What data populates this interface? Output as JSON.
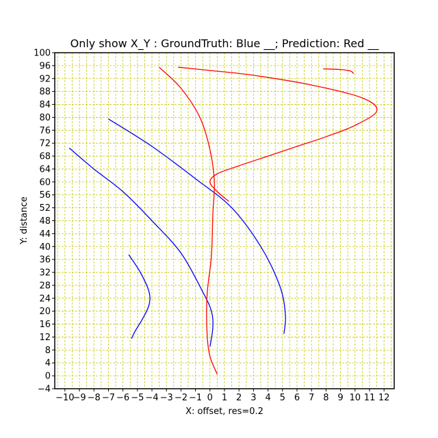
{
  "chart_data": {
    "type": "line",
    "title": "Only show X_Y : GroundTruth: Blue __;   Prediction: Red __",
    "xlabel": "X: offset, res=0.2",
    "ylabel": "Y: distance",
    "xlim": [
      -10.7,
      12.7
    ],
    "ylim": [
      -4,
      100
    ],
    "xticks": [
      -10,
      -9,
      -8,
      -7,
      -6,
      -5,
      -4,
      -3,
      -2,
      -1,
      0,
      1,
      2,
      3,
      4,
      5,
      6,
      7,
      8,
      9,
      10,
      11,
      12
    ],
    "yticks": [
      -4,
      0,
      4,
      8,
      12,
      16,
      20,
      24,
      28,
      32,
      36,
      40,
      44,
      48,
      52,
      56,
      60,
      64,
      68,
      72,
      76,
      80,
      84,
      88,
      92,
      96,
      100
    ],
    "xtick_labels": [
      "−10",
      "−9",
      "−8",
      "−7",
      "−6",
      "−5",
      "−4",
      "−3",
      "−2",
      "−1",
      "0",
      "1",
      "2",
      "3",
      "4",
      "5",
      "6",
      "7",
      "8",
      "9",
      "10",
      "11",
      "12"
    ],
    "ytick_labels": [
      "−4",
      "0",
      "4",
      "8",
      "12",
      "16",
      "20",
      "24",
      "28",
      "32",
      "36",
      "40",
      "44",
      "48",
      "52",
      "56",
      "60",
      "64",
      "68",
      "72",
      "76",
      "80",
      "84",
      "88",
      "92",
      "96",
      "100"
    ],
    "grid": true,
    "series": [
      {
        "color": "#0000ff",
        "points": [
          [
            -5.6,
            37.5
          ],
          [
            -4.8,
            32
          ],
          [
            -4.2,
            26
          ],
          [
            -4.2,
            22
          ],
          [
            -4.6,
            18
          ],
          [
            -5.2,
            13.5
          ],
          [
            -5.4,
            11.5
          ]
        ]
      },
      {
        "color": "#0000ff",
        "points": [
          [
            -9.7,
            70.5
          ],
          [
            -8,
            64
          ],
          [
            -6,
            57
          ],
          [
            -4,
            48
          ],
          [
            -2,
            38
          ],
          [
            -0.5,
            26
          ],
          [
            0.1,
            20
          ],
          [
            0.2,
            15
          ],
          [
            0,
            9
          ]
        ]
      },
      {
        "color": "#0000ff",
        "points": [
          [
            -7,
            79.5
          ],
          [
            -4,
            71
          ],
          [
            -1,
            61
          ],
          [
            1.5,
            52
          ],
          [
            3.5,
            40
          ],
          [
            4.8,
            28
          ],
          [
            5.2,
            19
          ],
          [
            5.1,
            13
          ]
        ]
      },
      {
        "color": "#ff0000",
        "points": [
          [
            0.5,
            0.5
          ],
          [
            0,
            6
          ],
          [
            -0.2,
            13
          ],
          [
            -0.2,
            25
          ],
          [
            0.1,
            37
          ],
          [
            0.2,
            50
          ],
          [
            0.3,
            60
          ],
          [
            0,
            70
          ],
          [
            -0.7,
            80
          ],
          [
            -2,
            89
          ],
          [
            -3.5,
            95.5
          ]
        ]
      },
      {
        "color": "#ff0000",
        "points": [
          [
            1.3,
            54
          ],
          [
            0.5,
            57
          ],
          [
            0,
            60
          ],
          [
            0.5,
            62.5
          ],
          [
            2,
            65
          ],
          [
            4,
            68
          ],
          [
            6,
            71
          ],
          [
            8,
            74
          ],
          [
            10,
            77.5
          ],
          [
            11.5,
            82
          ],
          [
            10.5,
            86
          ],
          [
            7,
            90
          ],
          [
            3,
            93
          ],
          [
            0,
            94.5
          ],
          [
            -2.2,
            95.5
          ]
        ]
      },
      {
        "color": "#ff0000",
        "points": [
          [
            7.8,
            95
          ],
          [
            9,
            94.8
          ],
          [
            9.7,
            94.3
          ],
          [
            9.9,
            93.5
          ]
        ]
      }
    ]
  }
}
